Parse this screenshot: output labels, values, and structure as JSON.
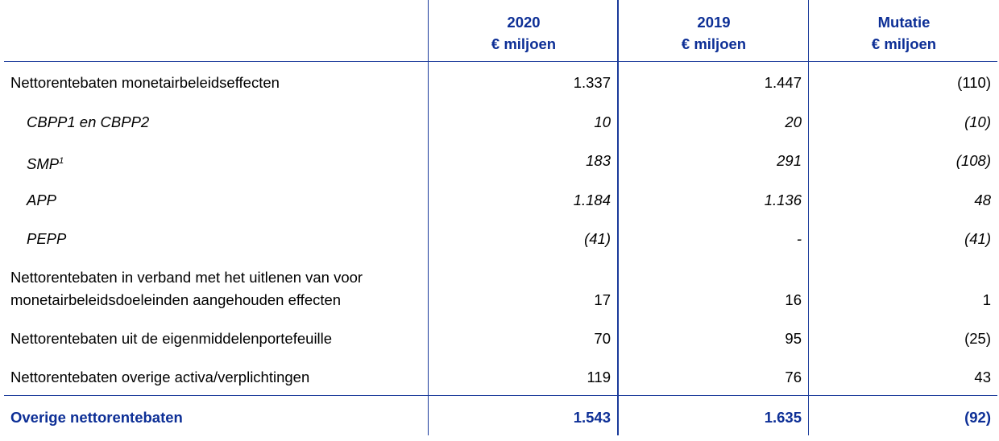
{
  "header": {
    "columns": [
      {
        "line1": "2020",
        "line2": "€ miljoen"
      },
      {
        "line1": "2019",
        "line2": "€ miljoen"
      },
      {
        "line1": "Mutatie",
        "line2": "€ miljoen"
      }
    ]
  },
  "rows": [
    {
      "label": "Nettorentebaten monetairbeleidseffecten",
      "v2020": "1.337",
      "v2019": "1.447",
      "mutatie": "(110)"
    },
    {
      "label": "CBPP1 en CBPP2",
      "v2020": "10",
      "v2019": "20",
      "mutatie": "(10)"
    },
    {
      "label": "SMP",
      "sup": "1",
      "v2020": "183",
      "v2019": "291",
      "mutatie": "(108)"
    },
    {
      "label": "APP",
      "v2020": "1.184",
      "v2019": "1.136",
      "mutatie": "48"
    },
    {
      "label": "PEPP",
      "v2020": "(41)",
      "v2019": "-",
      "mutatie": "(41)"
    },
    {
      "label_line1": "Nettorentebaten in verband met het uitlenen van voor",
      "label_line2": "monetairbeleidsdoeleinden aangehouden effecten",
      "v2020": "17",
      "v2019": "16",
      "mutatie": "1"
    },
    {
      "label": "Nettorentebaten uit de eigenmiddelenportefeuille",
      "v2020": "70",
      "v2019": "95",
      "mutatie": "(25)"
    },
    {
      "label": "Nettorentebaten overige activa/verplichtingen",
      "v2020": "119",
      "v2019": "76",
      "mutatie": "43"
    }
  ],
  "total": {
    "label": "Overige nettorentebaten",
    "v2020": "1.543",
    "v2019": "1.635",
    "mutatie": "(92)"
  },
  "colors": {
    "accent": "#0d2f96",
    "rule": "#1a3a9a"
  }
}
